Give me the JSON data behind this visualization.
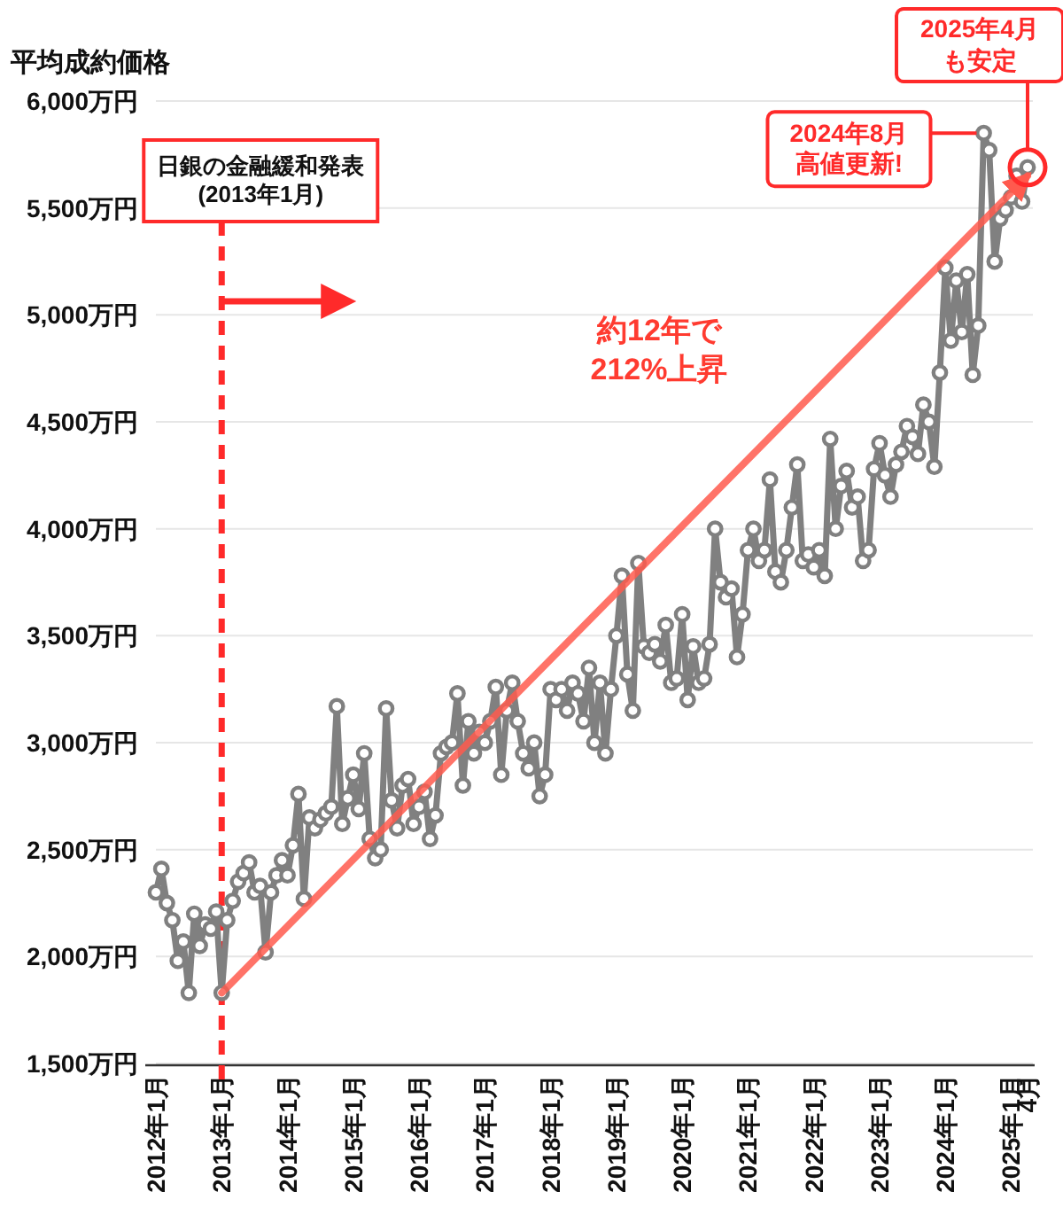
{
  "chart_data": {
    "type": "line",
    "ylabel": "平均成約価格",
    "x": [
      "2012-01",
      "2012-02",
      "2012-03",
      "2012-04",
      "2012-05",
      "2012-06",
      "2012-07",
      "2012-08",
      "2012-09",
      "2012-10",
      "2012-11",
      "2012-12",
      "2013-01",
      "2013-02",
      "2013-03",
      "2013-04",
      "2013-05",
      "2013-06",
      "2013-07",
      "2013-08",
      "2013-09",
      "2013-10",
      "2013-11",
      "2013-12",
      "2014-01",
      "2014-02",
      "2014-03",
      "2014-04",
      "2014-05",
      "2014-06",
      "2014-07",
      "2014-08",
      "2014-09",
      "2014-10",
      "2014-11",
      "2014-12",
      "2015-01",
      "2015-02",
      "2015-03",
      "2015-04",
      "2015-05",
      "2015-06",
      "2015-07",
      "2015-08",
      "2015-09",
      "2015-10",
      "2015-11",
      "2015-12",
      "2016-01",
      "2016-02",
      "2016-03",
      "2016-04",
      "2016-05",
      "2016-06",
      "2016-07",
      "2016-08",
      "2016-09",
      "2016-10",
      "2016-11",
      "2016-12",
      "2017-01",
      "2017-02",
      "2017-03",
      "2017-04",
      "2017-05",
      "2017-06",
      "2017-07",
      "2017-08",
      "2017-09",
      "2017-10",
      "2017-11",
      "2017-12",
      "2018-01",
      "2018-02",
      "2018-03",
      "2018-04",
      "2018-05",
      "2018-06",
      "2018-07",
      "2018-08",
      "2018-09",
      "2018-10",
      "2018-11",
      "2018-12",
      "2019-01",
      "2019-02",
      "2019-03",
      "2019-04",
      "2019-05",
      "2019-06",
      "2019-07",
      "2019-08",
      "2019-09",
      "2019-10",
      "2019-11",
      "2019-12",
      "2020-01",
      "2020-02",
      "2020-03",
      "2020-04",
      "2020-05",
      "2020-06",
      "2020-07",
      "2020-08",
      "2020-09",
      "2020-10",
      "2020-11",
      "2020-12",
      "2021-01",
      "2021-02",
      "2021-03",
      "2021-04",
      "2021-05",
      "2021-06",
      "2021-07",
      "2021-08",
      "2021-09",
      "2021-10",
      "2021-11",
      "2021-12",
      "2022-01",
      "2022-02",
      "2022-03",
      "2022-04",
      "2022-05",
      "2022-06",
      "2022-07",
      "2022-08",
      "2022-09",
      "2022-10",
      "2022-11",
      "2022-12",
      "2023-01",
      "2023-02",
      "2023-03",
      "2023-04",
      "2023-05",
      "2023-06",
      "2023-07",
      "2023-08",
      "2023-09",
      "2023-10",
      "2023-11",
      "2023-12",
      "2024-01",
      "2024-02",
      "2024-03",
      "2024-04",
      "2024-05",
      "2024-06",
      "2024-07",
      "2024-08",
      "2024-09",
      "2024-10",
      "2024-11",
      "2024-12",
      "2025-01",
      "2025-02",
      "2025-03",
      "2025-04"
    ],
    "series": [
      {
        "color": "#808080",
        "values": [
          2300,
          2410,
          2250,
          2170,
          1980,
          2070,
          1830,
          2200,
          2050,
          2150,
          2130,
          2210,
          1830,
          2170,
          2260,
          2350,
          2390,
          2440,
          2300,
          2330,
          2020,
          2300,
          2380,
          2450,
          2380,
          2520,
          2760,
          2270,
          2650,
          2600,
          2640,
          2670,
          2700,
          3170,
          2620,
          2740,
          2850,
          2690,
          2950,
          2550,
          2460,
          2500,
          3160,
          2730,
          2600,
          2800,
          2830,
          2620,
          2700,
          2770,
          2550,
          2660,
          2950,
          2980,
          3000,
          3230,
          2800,
          3100,
          2950,
          3050,
          3000,
          3100,
          3260,
          2850,
          3150,
          3280,
          3100,
          2950,
          2880,
          3000,
          2750,
          2850,
          3250,
          3200,
          3250,
          3150,
          3280,
          3230,
          3100,
          3350,
          3000,
          3280,
          2950,
          3250,
          3500,
          3780,
          3320,
          3150,
          3840,
          3450,
          3420,
          3460,
          3380,
          3550,
          3280,
          3300,
          3600,
          3200,
          3450,
          3280,
          3300,
          3460,
          4000,
          3750,
          3680,
          3720,
          3400,
          3600,
          3900,
          4000,
          3850,
          3900,
          4230,
          3800,
          3750,
          3900,
          4100,
          4300,
          3850,
          3880,
          3820,
          3900,
          3780,
          4420,
          4000,
          4200,
          4270,
          4100,
          4150,
          3850,
          3900,
          4280,
          4400,
          4250,
          4150,
          4300,
          4360,
          4480,
          4430,
          4350,
          4580,
          4500,
          4290,
          4730,
          5220,
          4880,
          5160,
          4920,
          5190,
          4720,
          4950,
          5850,
          5770,
          5250,
          5450,
          5490,
          5550,
          5650,
          5530,
          5690
        ]
      },
      {
        "type": "line",
        "color": "#ff5a4e",
        "x": [
          "2013-01",
          "2025-04"
        ],
        "values": [
          1830,
          5650
        ],
        "marker": "none"
      }
    ],
    "xlim": [
      "2012-01",
      "2025-04"
    ],
    "xticks": [
      {
        "value": "2012-01",
        "label": "2012年1月"
      },
      {
        "value": "2013-01",
        "label": "2013年1月"
      },
      {
        "value": "2014-01",
        "label": "2014年1月"
      },
      {
        "value": "2015-01",
        "label": "2015年1月"
      },
      {
        "value": "2016-01",
        "label": "2016年1月"
      },
      {
        "value": "2017-01",
        "label": "2017年1月"
      },
      {
        "value": "2018-01",
        "label": "2018年1月"
      },
      {
        "value": "2019-01",
        "label": "2019年1月"
      },
      {
        "value": "2020-01",
        "label": "2020年1月"
      },
      {
        "value": "2021-01",
        "label": "2021年1月"
      },
      {
        "value": "2022-01",
        "label": "2022年1月"
      },
      {
        "value": "2023-01",
        "label": "2023年1月"
      },
      {
        "value": "2024-01",
        "label": "2024年1月"
      },
      {
        "value": "2025-01",
        "label": "2025年1月"
      },
      {
        "value": "2025-04",
        "label": "4月"
      }
    ],
    "ylim": [
      1500,
      6000
    ],
    "yticks": [
      {
        "value": 1500,
        "label": "1,500万円"
      },
      {
        "value": 2000,
        "label": "2,000万円"
      },
      {
        "value": 2500,
        "label": "2,500万円"
      },
      {
        "value": 3000,
        "label": "3,000万円"
      },
      {
        "value": 3500,
        "label": "3,500万円"
      },
      {
        "value": 4000,
        "label": "4,000万円"
      },
      {
        "value": 4500,
        "label": "4,500万円"
      },
      {
        "value": 5000,
        "label": "5,000万円"
      },
      {
        "value": 5500,
        "label": "5,500万円"
      },
      {
        "value": 6000,
        "label": "6,000万円"
      }
    ],
    "grid": "y",
    "marker": "circle",
    "ref_lines": [
      {
        "axis": "x",
        "value": "2013-01",
        "label": "日銀の金融緩和発表(2013年1月)",
        "color": "#ff2a2a",
        "line_style": "dashed"
      }
    ],
    "annotations": [
      "約12年で\n212%上昇",
      {
        "text": "2024年8月高値更新!",
        "x": "2024-08",
        "y": 5850
      },
      "2025年4月も安定"
    ]
  }
}
